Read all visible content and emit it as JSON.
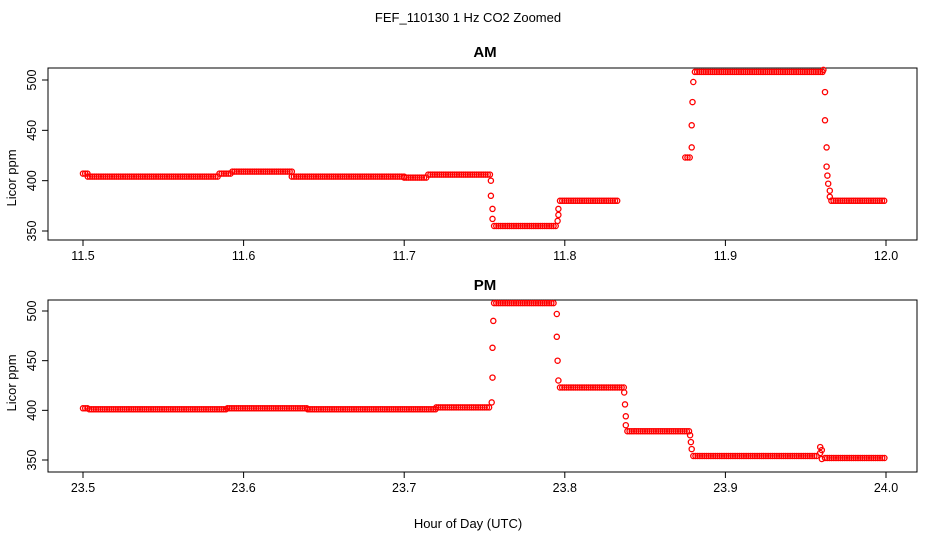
{
  "figure": {
    "title": "FEF_110130  1 Hz CO2 Zoomed",
    "xlabel": "Hour of Day (UTC)",
    "colors": {
      "points": "#ff0000",
      "axes": "#000000"
    }
  },
  "chart_data": [
    {
      "type": "scatter",
      "title": "AM",
      "xlabel": "",
      "ylabel": "Licor ppm",
      "xlim": [
        11.5,
        12.0
      ],
      "ylim": [
        350,
        512
      ],
      "xticks": [
        "11.5",
        "11.6",
        "11.7",
        "11.8",
        "11.9",
        "12.0"
      ],
      "yticks": [
        "350",
        "400",
        "450",
        "500"
      ],
      "segments": [
        {
          "x0": 11.5,
          "x1": 11.503,
          "y": 407
        },
        {
          "x0": 11.503,
          "x1": 11.585,
          "y": 404
        },
        {
          "x0": 11.585,
          "x1": 11.593,
          "y": 407
        },
        {
          "x0": 11.593,
          "x1": 11.63,
          "y": 409
        },
        {
          "x0": 11.63,
          "x1": 11.7,
          "y": 404
        },
        {
          "x0": 11.7,
          "x1": 11.715,
          "y": 403
        },
        {
          "x0": 11.715,
          "x1": 11.754,
          "y": 406
        },
        {
          "x0": 11.756,
          "x1": 11.795,
          "y": 355
        },
        {
          "x0": 11.797,
          "x1": 11.833,
          "y": 380
        },
        {
          "x0": 11.875,
          "x1": 11.879,
          "y": 423
        },
        {
          "x0": 11.881,
          "x1": 11.961,
          "y": 508
        },
        {
          "x0": 11.966,
          "x1": 12.0,
          "y": 380
        }
      ],
      "transitions": [
        {
          "x": 11.754,
          "y": 400
        },
        {
          "x": 11.754,
          "y": 385
        },
        {
          "x": 11.755,
          "y": 372
        },
        {
          "x": 11.755,
          "y": 362
        },
        {
          "x": 11.7955,
          "y": 360
        },
        {
          "x": 11.796,
          "y": 366
        },
        {
          "x": 11.796,
          "y": 372
        },
        {
          "x": 11.879,
          "y": 433
        },
        {
          "x": 11.879,
          "y": 455
        },
        {
          "x": 11.8795,
          "y": 478
        },
        {
          "x": 11.88,
          "y": 498
        },
        {
          "x": 11.961,
          "y": 510
        },
        {
          "x": 11.962,
          "y": 488
        },
        {
          "x": 11.962,
          "y": 460
        },
        {
          "x": 11.963,
          "y": 433
        },
        {
          "x": 11.963,
          "y": 414
        },
        {
          "x": 11.9635,
          "y": 405
        },
        {
          "x": 11.964,
          "y": 397
        },
        {
          "x": 11.965,
          "y": 390
        },
        {
          "x": 11.965,
          "y": 384
        }
      ]
    },
    {
      "type": "scatter",
      "title": "PM",
      "xlabel": "",
      "ylabel": "Licor ppm",
      "xlim": [
        23.5,
        24.0
      ],
      "ylim": [
        350,
        512
      ],
      "xticks": [
        "23.5",
        "23.6",
        "23.7",
        "23.8",
        "23.9",
        "24.0"
      ],
      "yticks": [
        "350",
        "400",
        "450",
        "500"
      ],
      "segments": [
        {
          "x0": 23.5,
          "x1": 23.504,
          "y": 402
        },
        {
          "x0": 23.504,
          "x1": 23.59,
          "y": 401
        },
        {
          "x0": 23.59,
          "x1": 23.64,
          "y": 402
        },
        {
          "x0": 23.64,
          "x1": 23.72,
          "y": 401
        },
        {
          "x0": 23.72,
          "x1": 23.754,
          "y": 403
        },
        {
          "x0": 23.756,
          "x1": 23.794,
          "y": 508
        },
        {
          "x0": 23.797,
          "x1": 23.837,
          "y": 423
        },
        {
          "x0": 23.839,
          "x1": 23.878,
          "y": 379
        },
        {
          "x0": 23.88,
          "x1": 23.958,
          "y": 354
        },
        {
          "x0": 23.962,
          "x1": 24.0,
          "y": 352
        }
      ],
      "transitions": [
        {
          "x": 23.7545,
          "y": 408
        },
        {
          "x": 23.755,
          "y": 433
        },
        {
          "x": 23.755,
          "y": 463
        },
        {
          "x": 23.7555,
          "y": 490
        },
        {
          "x": 23.795,
          "y": 497
        },
        {
          "x": 23.795,
          "y": 474
        },
        {
          "x": 23.7955,
          "y": 450
        },
        {
          "x": 23.796,
          "y": 430
        },
        {
          "x": 23.837,
          "y": 418
        },
        {
          "x": 23.8375,
          "y": 406
        },
        {
          "x": 23.838,
          "y": 394
        },
        {
          "x": 23.838,
          "y": 385
        },
        {
          "x": 23.878,
          "y": 375
        },
        {
          "x": 23.8785,
          "y": 368
        },
        {
          "x": 23.879,
          "y": 361
        },
        {
          "x": 23.959,
          "y": 357
        },
        {
          "x": 23.959,
          "y": 363
        },
        {
          "x": 23.96,
          "y": 360
        },
        {
          "x": 23.96,
          "y": 351
        }
      ]
    }
  ]
}
